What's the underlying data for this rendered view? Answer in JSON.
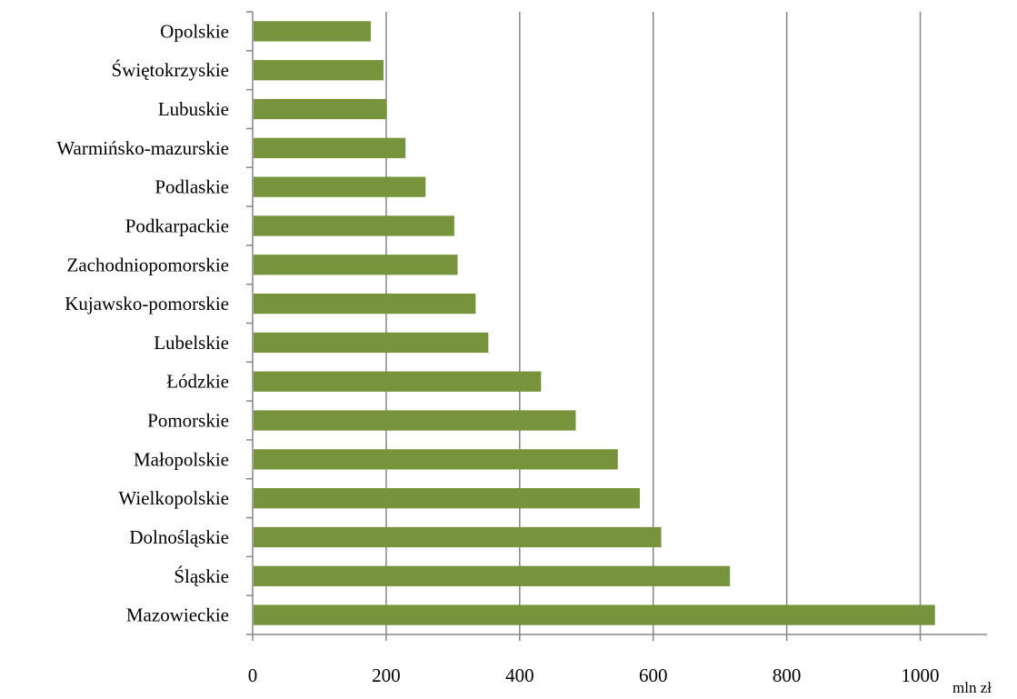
{
  "chart_data": {
    "type": "bar",
    "orientation": "horizontal",
    "categories": [
      "Opolskie",
      "Świętokrzyskie",
      "Lubuskie",
      "Warmińsko-mazurskie",
      "Podlaskie",
      "Podkarpackie",
      "Zachodniopomorskie",
      "Kujawsko-pomorskie",
      "Lubelskie",
      "Łódzkie",
      "Pomorskie",
      "Małopolskie",
      "Wielkopolskie",
      "Dolnośląskie",
      "Śląskie",
      "Mazowieckie"
    ],
    "values": [
      177,
      196,
      201,
      229,
      259,
      302,
      307,
      334,
      353,
      432,
      484,
      547,
      580,
      612,
      715,
      1022
    ],
    "title": "",
    "xlabel": "mln zł",
    "ylabel": "",
    "xlim": [
      0,
      1100
    ],
    "x_ticks": [
      0,
      200,
      400,
      600,
      800,
      1000
    ],
    "x_tick_labels": [
      "0",
      "200",
      "400",
      "600",
      "800",
      "1000"
    ],
    "grid": "vertical major gridlines",
    "legend": "none",
    "colors": {
      "bar": "#77933C",
      "grid": "#868686",
      "axis": "#868686",
      "text": "#000000"
    }
  }
}
